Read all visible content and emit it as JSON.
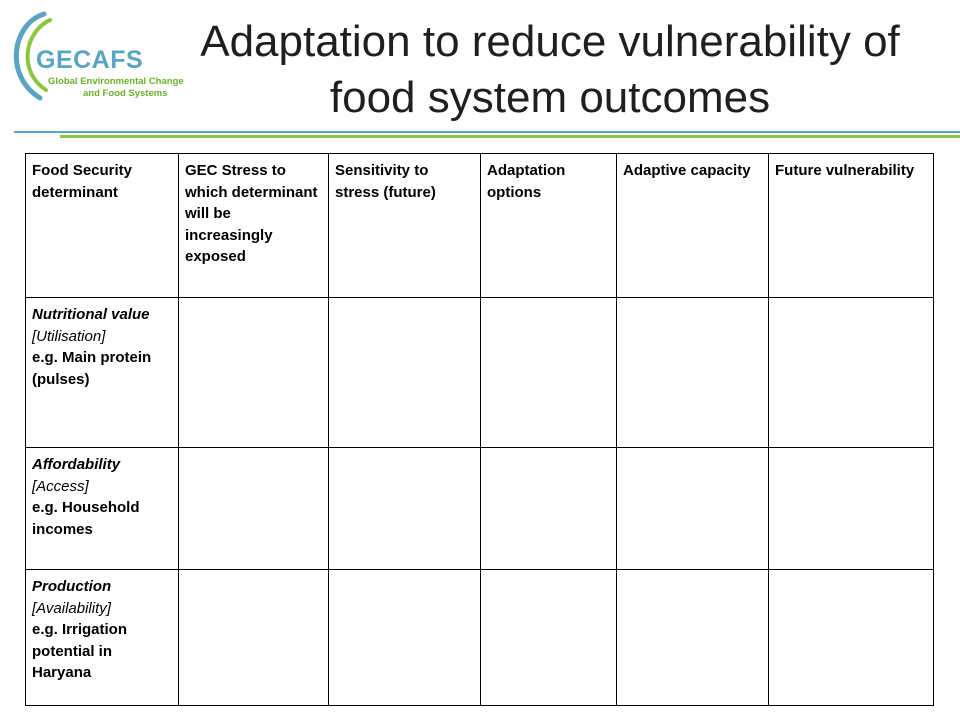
{
  "logo": {
    "name": "GECAFS",
    "subtitle_line1": "Global Environmental Change",
    "subtitle_line2": "and Food Systems",
    "colors": {
      "blue": "#5aa4c4",
      "green": "#6ab02a"
    }
  },
  "title": "Adaptation to reduce vulnerability of food system outcomes",
  "table": {
    "headers": [
      "Food Security determinant",
      "GEC Stress to which determinant will be increasingly exposed",
      "Sensitivity to stress (future)",
      "Adaptation options",
      "Adaptive capacity",
      "Future vulnerability"
    ],
    "rows": [
      {
        "label": "Nutritional value",
        "category": "[Utilisation]",
        "example": "e.g. Main protein (pulses)"
      },
      {
        "label": "Affordability",
        "category": "[Access]",
        "example": "e.g. Household incomes"
      },
      {
        "label": "Production",
        "category": "[Availability]",
        "example": "e.g. Irrigation potential in Haryana"
      }
    ]
  }
}
